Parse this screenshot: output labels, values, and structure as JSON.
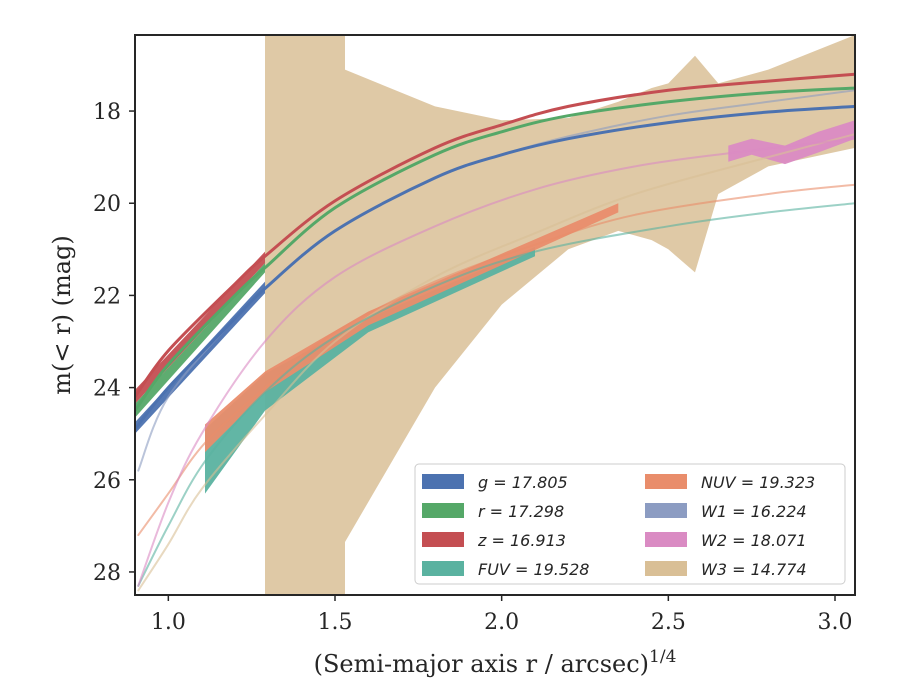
{
  "chart_data": {
    "type": "line",
    "xlabel": "(Semi-major axis r / arcsec)",
    "xlabel_sup": "1/4",
    "ylabel": "m(< r) (mag)",
    "xlim": [
      0.9,
      3.06
    ],
    "ylim": [
      28.5,
      16.35
    ],
    "y_inverted": true,
    "xticks": [
      "1.0",
      "1.5",
      "2.0",
      "2.5",
      "3.0"
    ],
    "yticks": [
      "18",
      "20",
      "22",
      "24",
      "26",
      "28"
    ],
    "legend_position": "lower-right",
    "series": [
      {
        "name": "g = 17.805",
        "color": "#4c72b0",
        "x": [
          0.9,
          1.0,
          1.2,
          1.29,
          1.5,
          1.8,
          2.0,
          2.2,
          2.5,
          2.8,
          3.06
        ],
        "y": [
          24.9,
          24.0,
          22.5,
          21.85,
          20.6,
          19.45,
          18.95,
          18.6,
          18.25,
          18.02,
          17.9
        ],
        "band_x": [
          0.9,
          1.29
        ],
        "band_y_upper": [
          24.75,
          21.7
        ],
        "band_y_lower": [
          25.0,
          21.95
        ]
      },
      {
        "name": "r = 17.298",
        "color": "#55a868",
        "x": [
          0.9,
          1.0,
          1.2,
          1.29,
          1.5,
          1.8,
          2.0,
          2.2,
          2.5,
          2.8,
          3.06
        ],
        "y": [
          24.5,
          23.5,
          22.0,
          21.4,
          20.1,
          18.95,
          18.45,
          18.1,
          17.8,
          17.6,
          17.5
        ],
        "band_x": [
          0.9,
          1.29
        ],
        "band_y_upper": [
          24.35,
          21.3
        ],
        "band_y_lower": [
          24.65,
          21.5
        ]
      },
      {
        "name": "z = 16.913",
        "color": "#c44e52",
        "x": [
          0.9,
          1.0,
          1.2,
          1.29,
          1.5,
          1.8,
          2.0,
          2.2,
          2.5,
          2.8,
          3.06
        ],
        "y": [
          24.2,
          23.2,
          21.75,
          21.15,
          19.95,
          18.8,
          18.3,
          17.9,
          17.55,
          17.35,
          17.2
        ],
        "band_x": [
          0.9,
          1.29
        ],
        "band_y_upper": [
          24.05,
          21.05
        ],
        "band_y_lower": [
          24.35,
          21.3
        ]
      },
      {
        "name": "FUV = 19.528",
        "color": "#5ab2a0",
        "x": [
          0.91,
          1.0,
          1.11,
          1.29,
          1.5,
          1.8,
          2.1,
          2.5,
          2.8,
          3.06
        ],
        "y": [
          28.3,
          27.0,
          25.6,
          24.1,
          22.9,
          21.8,
          21.05,
          20.5,
          20.2,
          20.0
        ],
        "band_x": [
          1.11,
          1.29,
          1.6,
          2.1
        ],
        "band_y_upper": [
          24.9,
          23.7,
          22.5,
          20.95
        ],
        "band_y_lower": [
          26.3,
          24.5,
          22.8,
          21.15
        ]
      },
      {
        "name": "NUV = 19.323",
        "color": "#e98d6b",
        "x": [
          0.91,
          1.0,
          1.11,
          1.29,
          1.5,
          1.8,
          2.1,
          2.4,
          2.8,
          3.06
        ],
        "y": [
          27.2,
          26.3,
          25.2,
          24.0,
          22.8,
          21.7,
          20.9,
          20.25,
          19.8,
          19.6
        ],
        "band_x": [
          1.11,
          1.29,
          1.6,
          2.35
        ],
        "band_y_upper": [
          24.8,
          23.65,
          22.35,
          20.0
        ],
        "band_y_lower": [
          25.4,
          24.1,
          22.65,
          20.2
        ]
      },
      {
        "name": "W1 = 16.224",
        "color": "#8c9cc2",
        "x": [
          0.91,
          1.0,
          1.2,
          1.29,
          1.5,
          1.8,
          2.0,
          2.2,
          2.5,
          2.8,
          3.06
        ],
        "y": [
          25.8,
          24.2,
          22.5,
          21.85,
          20.6,
          19.45,
          18.95,
          18.55,
          18.1,
          17.8,
          17.55
        ],
        "band_x": [],
        "band_y_upper": [],
        "band_y_lower": []
      },
      {
        "name": "W2 = 18.071",
        "color": "#da8bc3",
        "x": [
          0.91,
          1.0,
          1.1,
          1.29,
          1.5,
          1.8,
          2.1,
          2.4,
          2.7,
          3.06
        ],
        "y": [
          28.3,
          26.5,
          25.0,
          23.0,
          21.6,
          20.5,
          19.7,
          19.2,
          18.9,
          18.6
        ],
        "band_x": [
          2.68,
          2.75,
          2.85,
          2.95,
          3.06
        ],
        "band_y_upper": [
          18.75,
          18.6,
          18.75,
          18.45,
          18.2
        ],
        "band_y_lower": [
          19.1,
          18.95,
          19.15,
          18.9,
          18.6
        ]
      },
      {
        "name": "W3 = 14.774",
        "color": "#d9bf96",
        "x": [
          0.91,
          1.0,
          1.1,
          1.29,
          1.5,
          1.8,
          2.1,
          2.4,
          2.8,
          3.06
        ],
        "y": [
          28.4,
          27.4,
          26.2,
          24.6,
          23.0,
          21.6,
          20.65,
          19.8,
          19.0,
          18.5
        ],
        "band_x": [
          1.29,
          1.53,
          1.53,
          1.8,
          2.0,
          2.2,
          2.35,
          2.45,
          2.5,
          2.58,
          2.65,
          2.8,
          3.06
        ],
        "band_y_upper": [
          16.35,
          16.35,
          17.1,
          17.9,
          18.2,
          18.15,
          17.8,
          17.5,
          17.4,
          16.8,
          17.4,
          17.1,
          16.35
        ],
        "band_y_lower": [
          28.5,
          28.5,
          27.35,
          24.0,
          22.2,
          21.0,
          20.6,
          20.8,
          21.0,
          21.5,
          19.8,
          19.2,
          18.8
        ]
      }
    ]
  }
}
